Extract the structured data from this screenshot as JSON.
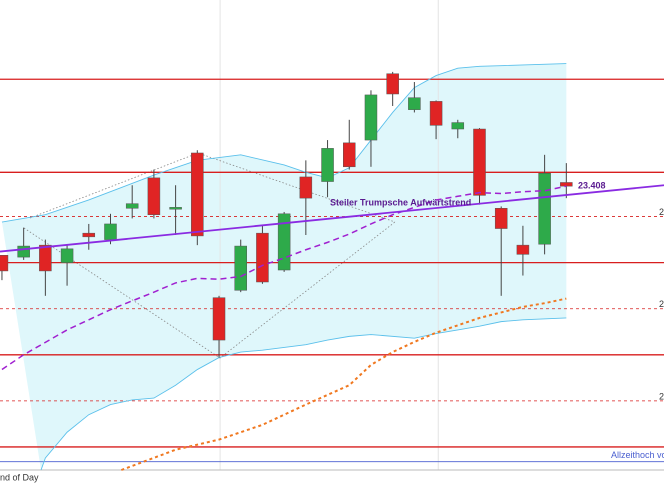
{
  "chart_data": {
    "type": "candlestick",
    "xlim": [
      -0.09,
      30.5
    ],
    "ylim": [
      23100,
      23610
    ],
    "up_color": "#2eaa4a",
    "down_color": "#e02424",
    "open": [
      23333,
      23331,
      23344,
      23325,
      23357,
      23350,
      23384,
      23417,
      23383,
      23444,
      23287,
      23295,
      23357,
      23317,
      23418,
      23413,
      23455,
      23458,
      23530,
      23491,
      23500,
      23470,
      23470,
      23384,
      23344,
      23345,
      23412
    ],
    "high": [
      23333,
      23363,
      23350,
      23344,
      23367,
      23378,
      23409,
      23426,
      23409,
      23447,
      23289,
      23350,
      23365,
      23380,
      23436,
      23458,
      23480,
      23512,
      23532,
      23521,
      23501,
      23480,
      23471,
      23386,
      23365,
      23442,
      23433
    ],
    "low": [
      23306,
      23328,
      23289,
      23300,
      23339,
      23345,
      23373,
      23373,
      23355,
      23344,
      23222,
      23293,
      23302,
      23315,
      23355,
      23396,
      23426,
      23429,
      23495,
      23488,
      23459,
      23460,
      23388,
      23289,
      23311,
      23334,
      23395
    ],
    "close": [
      23316,
      23343,
      23316,
      23340,
      23353,
      23367,
      23389,
      23377,
      23385,
      23354,
      23241,
      23343,
      23304,
      23378,
      23395,
      23449,
      23429,
      23507,
      23508,
      23504,
      23474,
      23477,
      23398,
      23362,
      23334,
      23422,
      23408
    ],
    "upper_band": {
      "color": "#5bc0eb",
      "x": [
        0,
        2,
        4,
        7,
        9,
        11,
        13,
        14,
        15,
        16,
        17,
        18,
        19,
        20,
        21,
        22,
        26
      ],
      "values": [
        23369,
        23377,
        23393,
        23420,
        23436,
        23442,
        23431,
        23423,
        23417,
        23428,
        23458,
        23488,
        23515,
        23528,
        23536,
        23538,
        23541
      ]
    },
    "lower_band": {
      "color": "#5bc0eb",
      "x": [
        1.8,
        2,
        3,
        4,
        5,
        6,
        7,
        8,
        9,
        10,
        11,
        12,
        14,
        15,
        16,
        17,
        19,
        20,
        21,
        22,
        23,
        24,
        26
      ],
      "values": [
        23100,
        23113,
        23141,
        23160,
        23171,
        23176,
        23178,
        23192,
        23209,
        23222,
        23228,
        23230,
        23236,
        23241,
        23245,
        23247,
        23243,
        23248,
        23252,
        23256,
        23261,
        23263,
        23265
      ]
    },
    "band_fill": "#dff7fb",
    "ma_short": {
      "color": "#a020d0",
      "x": [
        0,
        1,
        3,
        5,
        7,
        8,
        9,
        10,
        11,
        12,
        13,
        14,
        15,
        16,
        17,
        18,
        19,
        20,
        21,
        22,
        23,
        24,
        25,
        26
      ],
      "values": [
        23209,
        23225,
        23252,
        23274,
        23293,
        23303,
        23308,
        23307,
        23310,
        23322,
        23330,
        23339,
        23347,
        23356,
        23367,
        23377,
        23385,
        23393,
        23397,
        23401,
        23400,
        23402,
        23403,
        23408
      ]
    },
    "ma_long": {
      "color": "#f07820",
      "x": [
        5.5,
        8,
        10,
        12,
        14,
        16,
        17,
        18,
        19,
        20,
        21,
        22,
        23,
        24,
        25,
        26
      ],
      "values": [
        23100,
        23122,
        23133,
        23149,
        23171,
        23192,
        23214,
        23228,
        23239,
        23249,
        23257,
        23265,
        23271,
        23277,
        23281,
        23286
      ]
    },
    "trendline": {
      "color": "#8a2be2",
      "x": [
        -0.09,
        30.5
      ],
      "values": [
        23337,
        23409
      ],
      "label": "Steiler Trumpsche Aufwärtstrend"
    },
    "price_label": {
      "value": 23408,
      "label": "23.408"
    },
    "levels": [
      23524,
      23423,
      23325,
      23225,
      23125
    ],
    "level_color": "#d81e1e",
    "dashed_levels": [
      {
        "value": 23375,
        "label": "2"
      },
      {
        "value": 23275,
        "label": "2"
      },
      {
        "value": 23175,
        "label": "2"
      }
    ],
    "ath_line": {
      "value": 23109,
      "label": "Allzeithoch vom",
      "color": "#4a5fd0"
    },
    "xgrid": [
      10.05,
      20.1
    ],
    "footer": "nd of Day"
  }
}
